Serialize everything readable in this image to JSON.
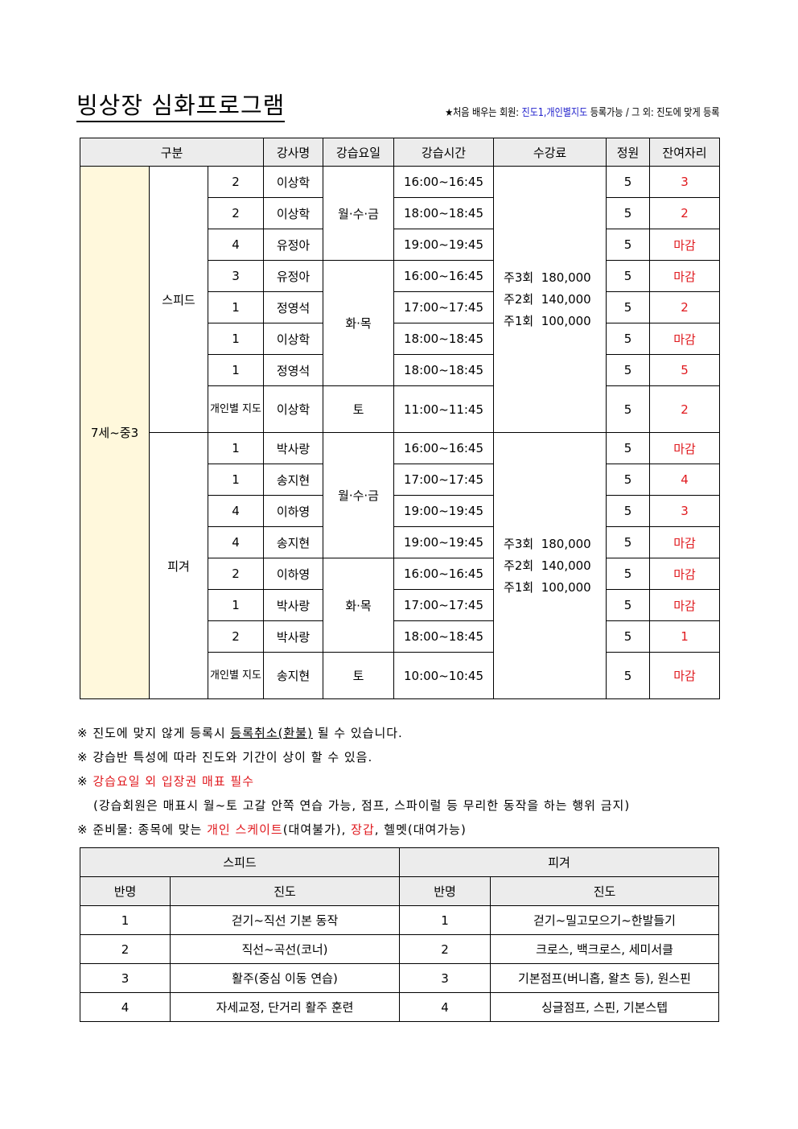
{
  "title": "빙상장 심화프로그램",
  "note": {
    "star": "★처음 배우는 회원: ",
    "highlight": "진도1,개인별지도",
    "rest": " 등록가능 / 그 외: 진도에 맞게 등록"
  },
  "schedule": {
    "headers": [
      "구분",
      "강사명",
      "강습요일",
      "강습시간",
      "수강료",
      "정원",
      "잔여자리"
    ],
    "age": "7세~중3",
    "sections": [
      {
        "name": "스피드",
        "fee": [
          "주3회  180,000",
          "주2회  140,000",
          "주1회  100,000"
        ],
        "day_groups": [
          {
            "label": "월·수·금",
            "rows": 3
          },
          {
            "label": "화·목",
            "rows": 4
          },
          {
            "label": "토",
            "rows": 1
          }
        ],
        "rows": [
          [
            "2",
            "이상학",
            "16:00~16:45",
            "5",
            "3"
          ],
          [
            "2",
            "이상학",
            "18:00~18:45",
            "5",
            "2"
          ],
          [
            "4",
            "유정아",
            "19:00~19:45",
            "5",
            "마감"
          ],
          [
            "3",
            "유정아",
            "16:00~16:45",
            "5",
            "마감"
          ],
          [
            "1",
            "정영석",
            "17:00~17:45",
            "5",
            "2"
          ],
          [
            "1",
            "이상학",
            "18:00~18:45",
            "5",
            "마감"
          ],
          [
            "1",
            "정영석",
            "18:00~18:45",
            "5",
            "5"
          ],
          [
            "개인별 지도",
            "이상학",
            "11:00~11:45",
            "5",
            "2"
          ]
        ]
      },
      {
        "name": "피겨",
        "fee": [
          "주3회  180,000",
          "주2회  140,000",
          "주1회  100,000"
        ],
        "day_groups": [
          {
            "label": "월·수·금",
            "rows": 4
          },
          {
            "label": "화·목",
            "rows": 3
          },
          {
            "label": "토",
            "rows": 1
          }
        ],
        "rows": [
          [
            "1",
            "박사랑",
            "16:00~16:45",
            "5",
            "마감"
          ],
          [
            "1",
            "송지현",
            "17:00~17:45",
            "5",
            "4"
          ],
          [
            "4",
            "이하영",
            "19:00~19:45",
            "5",
            "3"
          ],
          [
            "4",
            "송지현",
            "19:00~19:45",
            "5",
            "마감"
          ],
          [
            "2",
            "이하영",
            "16:00~16:45",
            "5",
            "마감"
          ],
          [
            "1",
            "박사랑",
            "17:00~17:45",
            "5",
            "마감"
          ],
          [
            "2",
            "박사랑",
            "18:00~18:45",
            "5",
            "1"
          ],
          [
            "개인별 지도",
            "송지현",
            "10:00~10:45",
            "5",
            "마감"
          ]
        ]
      }
    ]
  },
  "notes": {
    "n1a": "※ 진도에 맞지 않게 등록시 ",
    "n1u": "등록취소(환불)",
    "n1b": " 될 수 있습니다.",
    "n2": "※ 강습반 특성에 따라 진도와 기간이 상이 할 수 있음.",
    "n3a": "※ ",
    "n3r": "강습요일 외 입장권 매표 필수",
    "n4": "(강습회원은 매표시 월~토 고갈 안쪽 연습 가능, 점프, 스파이럴 등 무리한 동작을 하는 행위 금지)",
    "n5a": "※ 준비물: 종목에 맞는 ",
    "n5r1": "개인 스케이트",
    "n5b": "(대여불가), ",
    "n5r2": "장갑",
    "n5c": ", 헬멧(대여가능)"
  },
  "levels": {
    "sections": [
      "스피드",
      "피겨"
    ],
    "col_class": "반명",
    "col_level": "진도",
    "rows": [
      [
        "1",
        "걷기~직선 기본 동작",
        "1",
        "걷기~밀고모으기~한발들기"
      ],
      [
        "2",
        "직선~곡선(코너)",
        "2",
        "크로스, 백크로스, 세미서클"
      ],
      [
        "3",
        "활주(중심 이동 연습)",
        "3",
        "기본점프(버니홉, 왈츠 등), 원스핀"
      ],
      [
        "4",
        "자세교정, 단거리 활주 훈련",
        "4",
        "싱글점프, 스핀, 기본스텝"
      ]
    ]
  },
  "colors": {
    "remaining": "#e0191e",
    "highlight": "#2222cc",
    "side": "#fff8dc",
    "header": "#ececec"
  }
}
